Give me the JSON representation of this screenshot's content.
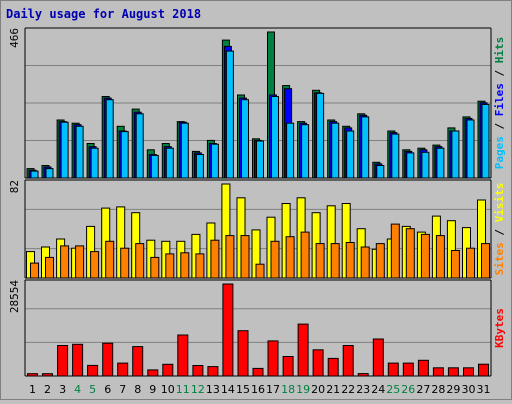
{
  "chart_data": {
    "title": "Daily usage for August 2018",
    "type": "bar",
    "categories": [
      "1",
      "2",
      "3",
      "4",
      "5",
      "6",
      "7",
      "8",
      "9",
      "10",
      "11",
      "12",
      "13",
      "14",
      "15",
      "16",
      "17",
      "18",
      "19",
      "20",
      "21",
      "22",
      "23",
      "24",
      "25",
      "26",
      "27",
      "28",
      "29",
      "30",
      "31"
    ],
    "weekend_days": [
      "4",
      "5",
      "11",
      "12",
      "18",
      "19",
      "25",
      "26"
    ],
    "panels": [
      {
        "id": "hits-files-pages",
        "max_label": "466",
        "ymax": 466,
        "legend": [
          {
            "text": "Pages",
            "color": "#00c0ff"
          },
          {
            "text": " / ",
            "color": "#000000"
          },
          {
            "text": "Files",
            "color": "#0000ff"
          },
          {
            "text": " / ",
            "color": "#000000"
          },
          {
            "text": "Hits",
            "color": "#008040"
          }
        ],
        "series": [
          {
            "name": "Hits",
            "color": "#008040",
            "values": [
              30,
              40,
              185,
              175,
              110,
              260,
              165,
              220,
              90,
              110,
              180,
              85,
              120,
              440,
              265,
              125,
              466,
              295,
              180,
              280,
              185,
              165,
              205,
              50,
              150,
              90,
              95,
              105,
              160,
              195,
              245
            ]
          },
          {
            "name": "Files",
            "color": "#0000ff",
            "values": [
              25,
              35,
              180,
              170,
              100,
              255,
              150,
              210,
              75,
              100,
              178,
              80,
              110,
              420,
              255,
              120,
              265,
              285,
              175,
              272,
              180,
              160,
              200,
              45,
              145,
              85,
              90,
              100,
              150,
              190,
              240
            ]
          },
          {
            "name": "Pages",
            "color": "#00c0ff",
            "values": [
              22,
              30,
              178,
              165,
              95,
              250,
              148,
              205,
              72,
              95,
              175,
              75,
              108,
              405,
              250,
              118,
              260,
              175,
              170,
              270,
              175,
              150,
              195,
              40,
              140,
              80,
              82,
              95,
              150,
              185,
              235
            ]
          }
        ]
      },
      {
        "id": "visits-sites",
        "max_label": "82",
        "ymax": 82,
        "legend": [
          {
            "text": "Sites",
            "color": "#ff8000"
          },
          {
            "text": " / ",
            "color": "#000000"
          },
          {
            "text": "Visits",
            "color": "#ffff00"
          }
        ],
        "series": [
          {
            "name": "Visits",
            "color": "#ffff00",
            "values": [
              23,
              27,
              34,
              26,
              45,
              61,
              62,
              57,
              33,
              32,
              32,
              38,
              48,
              82,
              70,
              42,
              53,
              65,
              70,
              57,
              63,
              65,
              43,
              25,
              34,
              45,
              40,
              54,
              50,
              44,
              68
            ]
          },
          {
            "name": "Sites",
            "color": "#ff8000",
            "values": [
              13,
              18,
              28,
              28,
              23,
              32,
              26,
              30,
              18,
              21,
              22,
              21,
              33,
              37,
              37,
              12,
              32,
              36,
              40,
              30,
              30,
              31,
              27,
              30,
              47,
              43,
              38,
              37,
              24,
              26,
              30
            ]
          }
        ]
      },
      {
        "id": "kbytes",
        "max_label": "28554",
        "ymax": 28554,
        "legend": [
          {
            "text": "KBytes",
            "color": "#ff0000"
          }
        ],
        "series": [
          {
            "name": "KBytes",
            "color": "#ff0000",
            "values": [
              720,
              720,
              9460,
              9830,
              3280,
              10180,
              4000,
              9130,
              1900,
              3630,
              12720,
              3250,
              2920,
              28554,
              14060,
              2360,
              10900,
              6050,
              16110,
              8140,
              5470,
              9460,
              760,
              11490,
              4000,
              4000,
              4880,
              2550,
              2550,
              2550,
              3660
            ]
          }
        ]
      }
    ]
  }
}
